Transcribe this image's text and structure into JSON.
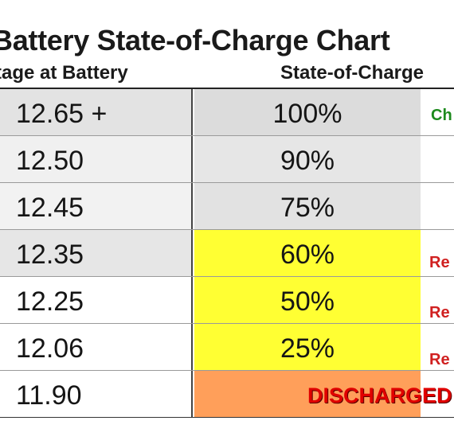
{
  "chart_data": {
    "type": "table",
    "title": "Battery State-of-Charge Chart",
    "columns": [
      "tage at Battery",
      "State-of-Charge"
    ],
    "rows": [
      {
        "voltage": "12.65 +",
        "soc": "100%",
        "soc_bg": "#dcdcdc",
        "volt_bg": "#e3e3e3",
        "note": "Ch",
        "note_color": "green"
      },
      {
        "voltage": "12.50",
        "soc": "90%",
        "soc_bg": "#e6e6e6",
        "volt_bg": "#f0f0f0",
        "note": "",
        "note_color": ""
      },
      {
        "voltage": "12.45",
        "soc": "75%",
        "soc_bg": "#e2e2e2",
        "volt_bg": "#f2f2f2",
        "note": "",
        "note_color": ""
      },
      {
        "voltage": "12.35",
        "soc": "60%",
        "soc_bg": "#ffff33",
        "volt_bg": "#e6e6e6",
        "note": "Re",
        "note_color": "red"
      },
      {
        "voltage": "12.25",
        "soc": "50%",
        "soc_bg": "#ffff33",
        "volt_bg": "#ffffff",
        "note": "Re",
        "note_color": "red"
      },
      {
        "voltage": "12.06",
        "soc": "25%",
        "soc_bg": "#ffff33",
        "volt_bg": "#ffffff",
        "note": "Re",
        "note_color": "red"
      },
      {
        "voltage": "11.90",
        "soc": "DISCHARGED",
        "soc_bg": "#ff9f5a",
        "volt_bg": "#ffffff",
        "note": "",
        "note_color": ""
      }
    ]
  }
}
